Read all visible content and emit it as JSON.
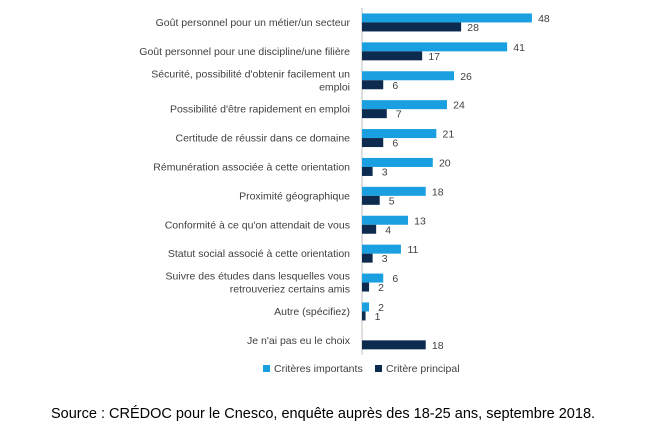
{
  "chart_data": {
    "type": "bar",
    "orientation": "horizontal",
    "categories": [
      [
        "Goût personnel pour un métier/un secteur"
      ],
      [
        "Goût personnel pour une discipline/une filière"
      ],
      [
        "Sécurité, possibilité d'obtenir facilement un",
        "emploi"
      ],
      [
        "Possibilité d'être rapidement en emploi"
      ],
      [
        "Certitude de réussir dans ce domaine"
      ],
      [
        "Rémunération associée à cette orientation"
      ],
      [
        "Proximité géographique"
      ],
      [
        "Conformité à ce qu'on attendait de vous"
      ],
      [
        "Statut social associé à cette orientation"
      ],
      [
        "Suivre des études dans lesquelles vous",
        "retrouveriez certains amis"
      ],
      [
        "Autre (spécifiez)"
      ],
      [
        "Je n'ai pas eu le choix"
      ]
    ],
    "series": [
      {
        "name": "Critères importants",
        "color": "#1aa0e0",
        "values": [
          48,
          41,
          26,
          24,
          21,
          20,
          18,
          13,
          11,
          6,
          2,
          null
        ]
      },
      {
        "name": "Critère principal",
        "color": "#0d2a4f",
        "values": [
          28,
          17,
          6,
          7,
          6,
          3,
          5,
          4,
          3,
          2,
          1,
          18
        ]
      }
    ],
    "legend_position": "bottom",
    "grid": false
  },
  "source": "Source : CRÉDOC pour le Cnesco, enquête auprès des 18-25 ans, septembre 2018."
}
